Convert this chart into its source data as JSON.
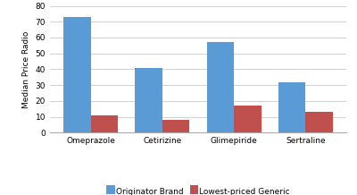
{
  "categories": [
    "Omeprazole",
    "Cetirizine",
    "Glimepiride",
    "Sertraline"
  ],
  "originator_brand": [
    73,
    41,
    57,
    32
  ],
  "lowest_priced_generic": [
    11,
    8,
    17,
    13
  ],
  "bar_color_originator": "#5B9BD5",
  "bar_color_generic": "#C0504D",
  "ylabel": "Median Price Radio",
  "ylim": [
    0,
    80
  ],
  "yticks": [
    0,
    10,
    20,
    30,
    40,
    50,
    60,
    70,
    80
  ],
  "legend_originator": "Originator Brand",
  "legend_generic": "Lowest-priced Generic",
  "background_color": "#ffffff",
  "grid_color": "#d0d0d0"
}
